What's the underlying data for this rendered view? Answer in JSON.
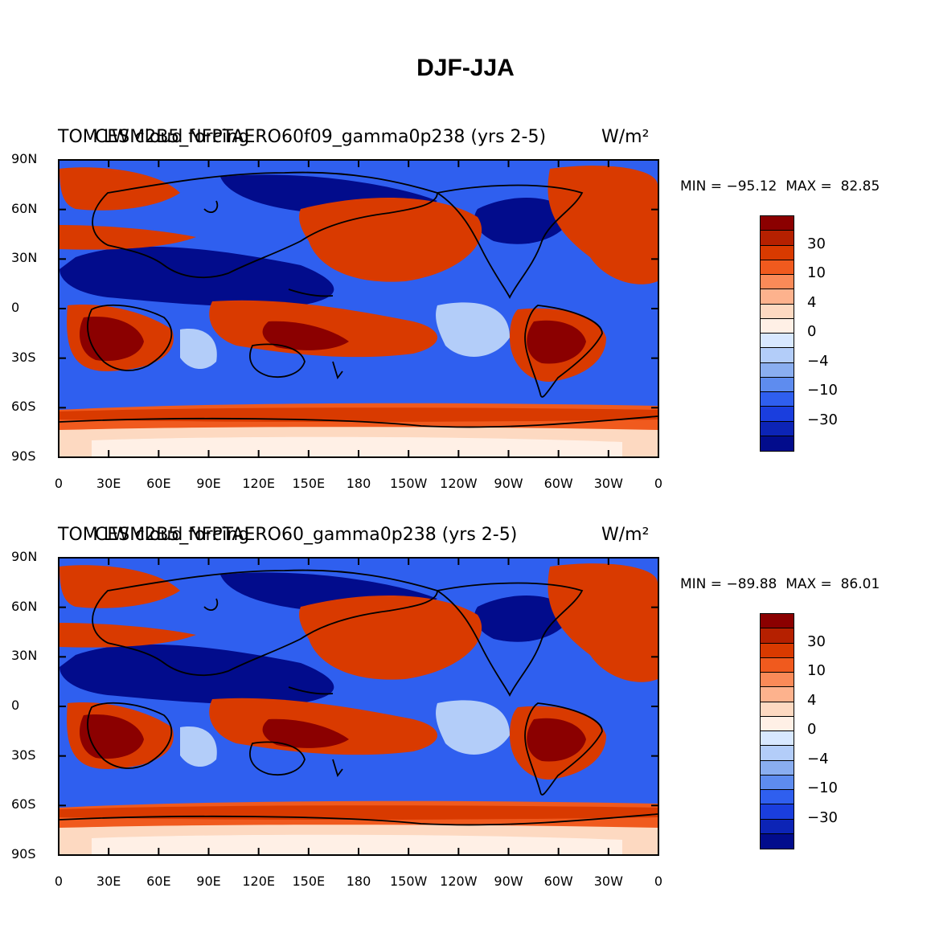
{
  "title": "DJF-JJA",
  "panels": [
    {
      "title_left": "TOM LW cloud forcing",
      "title_center": "CESM2B5_NFPTAERO60f09_gamma0p238 (yrs 2-5)",
      "title_right": "W/m²",
      "min_label": "MIN = −95.12",
      "max_label": "MAX =  82.85"
    },
    {
      "title_left": "TOM LW cloud forcing",
      "title_center": "CESM2B5_NFPTAERO60_gamma0p238 (yrs 2-5)",
      "title_right": "W/m²",
      "min_label": "MIN = −89.88",
      "max_label": "MAX =  86.01"
    }
  ],
  "axes": {
    "lat_labels": [
      "90N",
      "60N",
      "30N",
      "0",
      "30S",
      "60S",
      "90S"
    ],
    "lon_labels": [
      "0",
      "30E",
      "60E",
      "90E",
      "120E",
      "150E",
      "180",
      "150W",
      "120W",
      "90W",
      "60W",
      "30W",
      "0"
    ]
  },
  "colorbar": {
    "labels": [
      "30",
      "10",
      "4",
      "0",
      "−4",
      "−10",
      "−30"
    ],
    "colors": [
      "#8b0000",
      "#b52000",
      "#d93a00",
      "#f05a1e",
      "#fa8a58",
      "#fdb28d",
      "#fdd9c1",
      "#fff0e6",
      "#d8e8ff",
      "#b3cdf9",
      "#8aaef0",
      "#5e8cef",
      "#2f5fef",
      "#1a3ede",
      "#0c24b6",
      "#020c8c"
    ]
  },
  "palette": {
    "deep_red": "#8b0000",
    "red": "#d93a00",
    "orange": "#f05a1e",
    "light_orange": "#fa8a58",
    "peach": "#fdd9c1",
    "white": "#fff0e6",
    "light_blue": "#b3cdf9",
    "blue": "#2f5fef",
    "deep_blue": "#020c8c"
  }
}
